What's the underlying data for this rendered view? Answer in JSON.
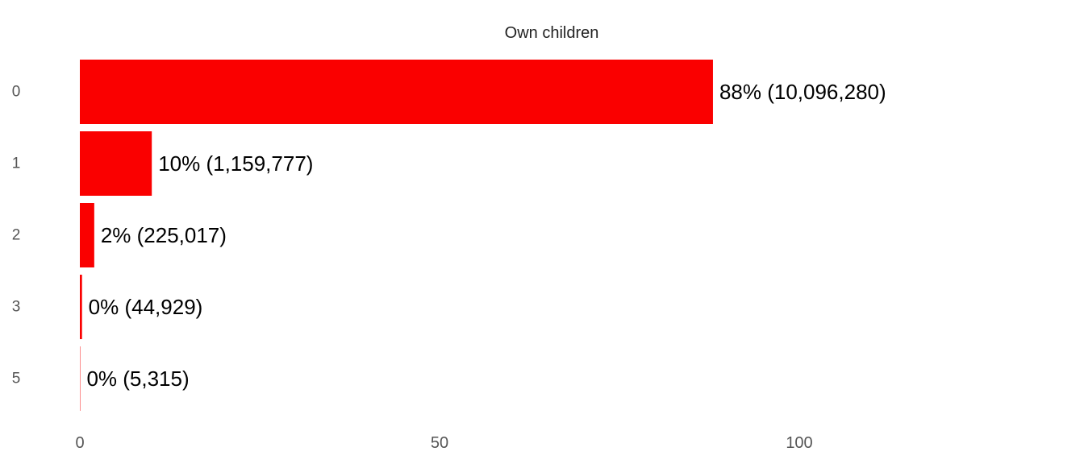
{
  "chart_data": {
    "type": "bar",
    "orientation": "horizontal",
    "title": "Own children",
    "categories": [
      "0",
      "1",
      "2",
      "3",
      "5"
    ],
    "values": [
      88,
      10,
      2,
      0.3,
      0.05
    ],
    "counts": [
      "10,096,280",
      "1,159,777",
      "225,017",
      "44,929",
      "5,315"
    ],
    "data_labels": [
      "88% (10,096,280)",
      "10% (1,159,777)",
      "2% (225,017)",
      "0% (44,929)",
      "0% (5,315)"
    ],
    "xlim": [
      0,
      100
    ],
    "xticks": [
      "0",
      "50",
      "100"
    ],
    "xlabel": "",
    "ylabel": "",
    "grid": false,
    "bar_color": "#fa0000"
  }
}
